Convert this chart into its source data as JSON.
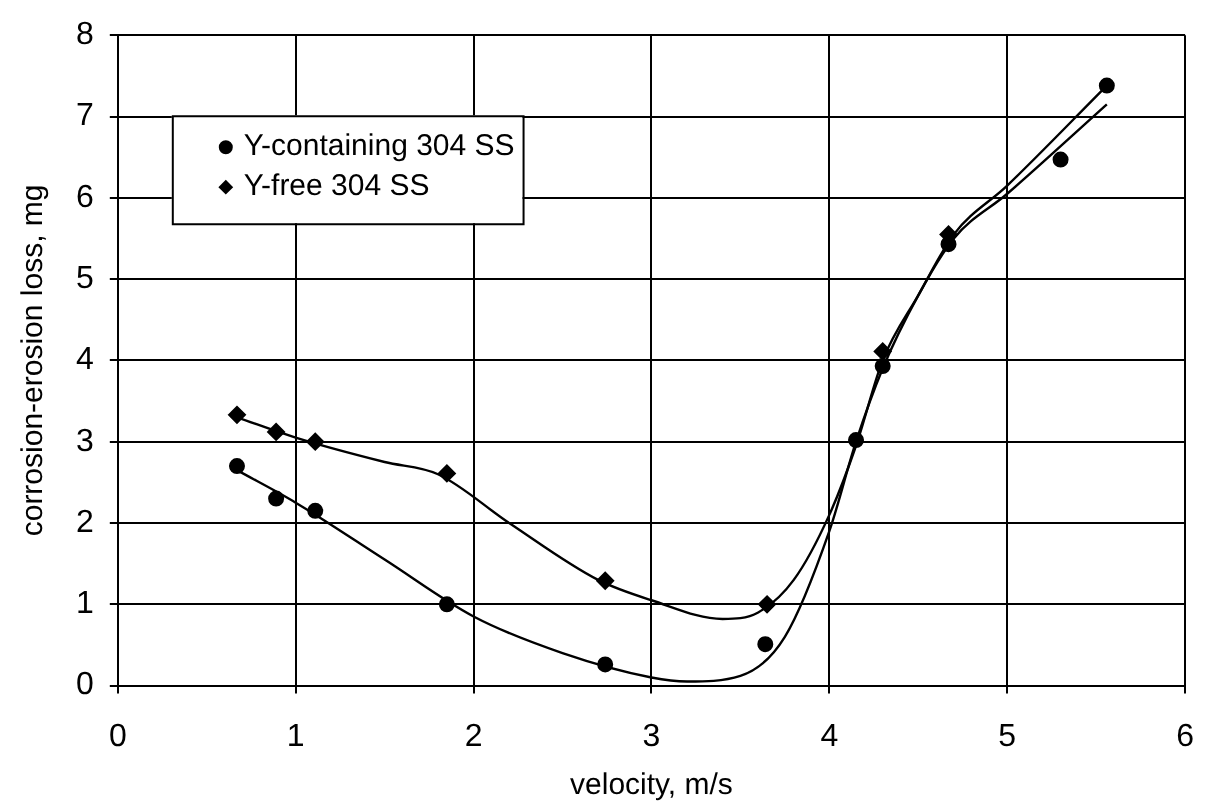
{
  "chart_data": {
    "type": "scatter",
    "xlabel": "velocity, m/s",
    "ylabel": "corrosion-erosion loss, mg",
    "xlim": [
      0,
      6
    ],
    "xticks": [
      0,
      1,
      2,
      3,
      4,
      5,
      6
    ],
    "ylim": [
      0,
      8
    ],
    "yticks": [
      0,
      1,
      2,
      3,
      4,
      5,
      6,
      7,
      8
    ],
    "grid": true,
    "legend": "top left",
    "series": [
      {
        "name": "Y-containing 304 SS",
        "color": "#000000",
        "marker": "circle",
        "x": [
          0.67,
          0.89,
          1.11,
          1.85,
          2.74,
          3.64,
          4.15,
          4.3,
          4.67,
          5.3,
          5.56
        ],
        "values": [
          2.7,
          2.3,
          2.15,
          1.0,
          0.26,
          0.51,
          3.02,
          3.93,
          5.43,
          6.47,
          7.38
        ]
      },
      {
        "name": "Y-free 304 SS",
        "color": "#000000",
        "marker": "diamond",
        "x": [
          0.67,
          0.89,
          1.11,
          1.85,
          2.74,
          3.65,
          4.3,
          4.67
        ],
        "values": [
          3.33,
          3.12,
          3.0,
          2.61,
          1.29,
          1.0,
          4.11,
          5.55
        ]
      },
      {
        "type": "line",
        "color": "#000000",
        "marker": "none",
        "x": [
          0.67,
          1.0,
          1.5,
          2.0,
          2.5,
          3.0,
          3.2,
          3.5,
          3.75,
          4.0,
          4.15,
          4.3,
          4.5,
          4.7,
          5.0,
          5.56
        ],
        "values": [
          2.65,
          2.25,
          1.55,
          0.85,
          0.4,
          0.1,
          0.05,
          0.12,
          0.6,
          1.9,
          3.0,
          3.9,
          4.8,
          5.5,
          6.05,
          7.15
        ]
      },
      {
        "type": "line",
        "color": "#000000",
        "marker": "none",
        "x": [
          0.67,
          1.0,
          1.5,
          1.8,
          2.2,
          2.7,
          3.0,
          3.4,
          3.6,
          3.8,
          4.0,
          4.15,
          4.3,
          4.5,
          4.7,
          5.0,
          5.56
        ],
        "values": [
          3.3,
          3.05,
          2.75,
          2.6,
          2.0,
          1.3,
          1.05,
          0.82,
          0.9,
          1.3,
          2.1,
          2.95,
          4.0,
          4.8,
          5.55,
          6.15,
          7.38
        ]
      }
    ]
  }
}
